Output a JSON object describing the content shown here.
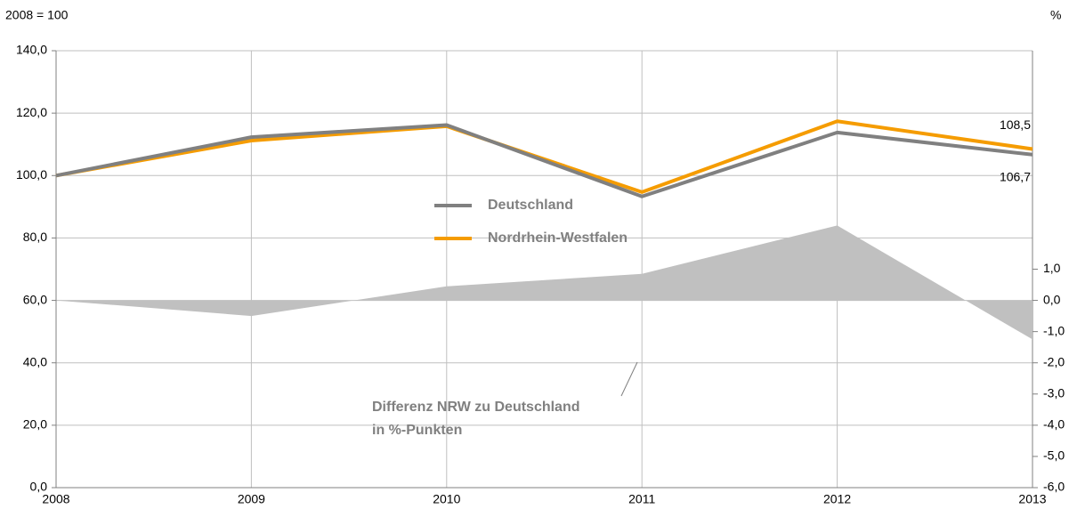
{
  "chart_data": {
    "type": "line",
    "left_unit": "2008 = 100",
    "right_unit": "%",
    "x": [
      2008,
      2009,
      2010,
      2011,
      2012,
      2013
    ],
    "xlim": [
      2008,
      2013
    ],
    "xticks": [
      2008,
      2009,
      2010,
      2011,
      2012,
      2013
    ],
    "ylim": [
      0,
      140
    ],
    "yticks": [
      {
        "value": 0,
        "label": "0,0"
      },
      {
        "value": 20,
        "label": "20,0"
      },
      {
        "value": 40,
        "label": "40,0"
      },
      {
        "value": 60,
        "label": "60,0"
      },
      {
        "value": 80,
        "label": "80,0"
      },
      {
        "value": 100,
        "label": "100,0"
      },
      {
        "value": 120,
        "label": "120,0"
      },
      {
        "value": 140,
        "label": "140,0"
      }
    ],
    "y2lim": [
      -6,
      8
    ],
    "y2ticks": [
      {
        "value": -6,
        "label": "-6,0"
      },
      {
        "value": -5,
        "label": "-5,0"
      },
      {
        "value": -4,
        "label": "-4,0"
      },
      {
        "value": -3,
        "label": "-3,0"
      },
      {
        "value": -2,
        "label": "-2,0"
      },
      {
        "value": -1,
        "label": "-1,0"
      },
      {
        "value": 0,
        "label": "0,0"
      },
      {
        "value": 1,
        "label": "1,0"
      }
    ],
    "grid": true,
    "series": [
      {
        "name": "Differenz NRW zu Deutschland",
        "name_line2": "in %-Punkten",
        "type": "area",
        "axis": "y2",
        "color": "#c0c0c0",
        "values": [
          0,
          -0.5,
          0.45,
          0.85,
          2.4,
          -1.25
        ]
      },
      {
        "name": "Nordrhein-Westfalen",
        "color": "#f59c00",
        "values": [
          100,
          111.2,
          115.8,
          94.7,
          117.4,
          108.5
        ],
        "value_labels": [
          null,
          null,
          null,
          null,
          null,
          "108,5"
        ]
      },
      {
        "name": "Deutschland",
        "color": "#808080",
        "values": [
          100,
          112.3,
          116.2,
          93.3,
          113.8,
          106.7
        ],
        "value_labels": [
          null,
          null,
          null,
          null,
          null,
          "106,7"
        ]
      }
    ]
  }
}
